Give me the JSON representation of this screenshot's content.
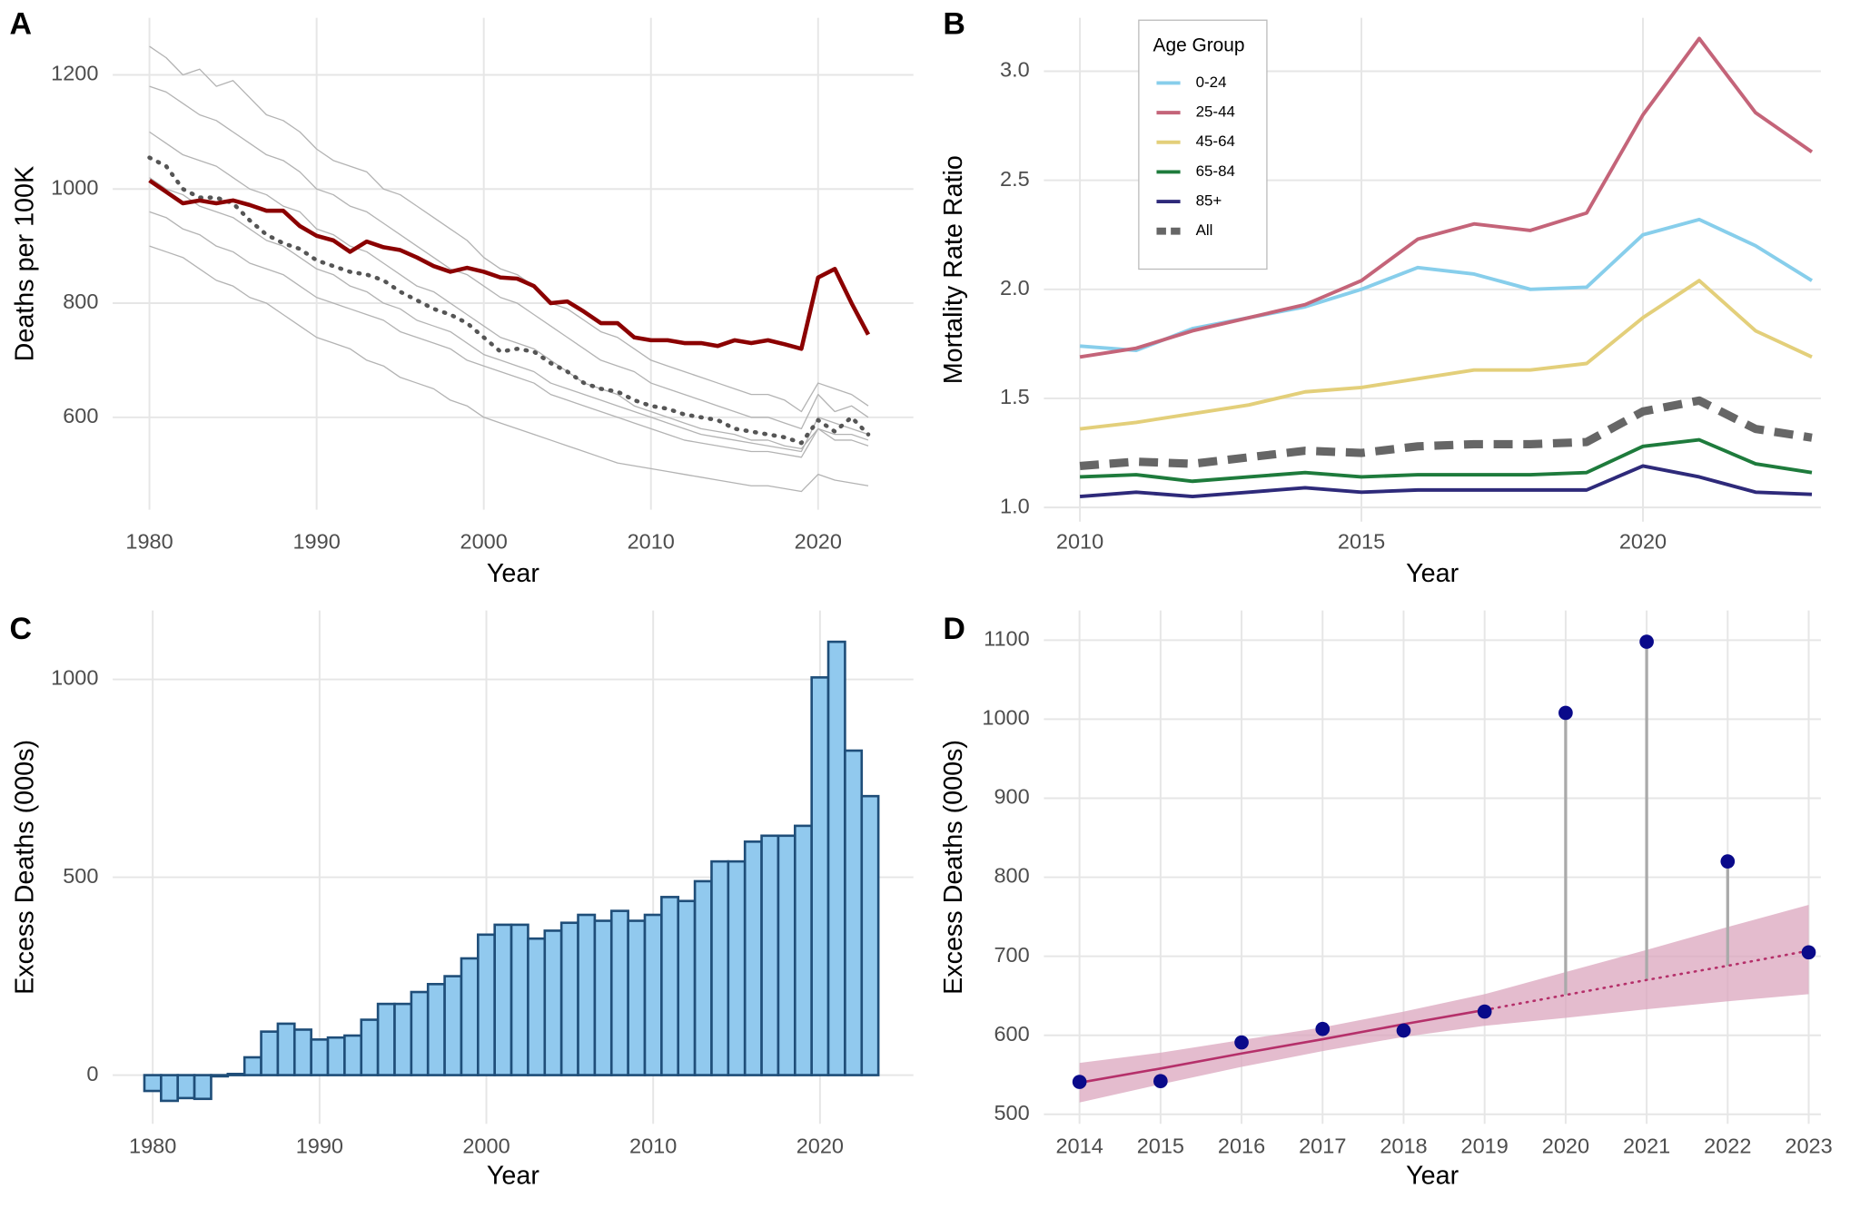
{
  "chart_data": [
    {
      "type": "line",
      "panel": "A",
      "xlabel": "Year",
      "ylabel": "Deaths per 100K",
      "x": [
        1980,
        1981,
        1982,
        1983,
        1984,
        1985,
        1986,
        1987,
        1988,
        1989,
        1990,
        1991,
        1992,
        1993,
        1994,
        1995,
        1996,
        1997,
        1998,
        1999,
        2000,
        2001,
        2002,
        2003,
        2004,
        2005,
        2006,
        2007,
        2008,
        2009,
        2010,
        2011,
        2012,
        2013,
        2014,
        2015,
        2016,
        2017,
        2018,
        2019,
        2020,
        2021,
        2022,
        2023
      ],
      "xlim": [
        1977.8,
        2025.7
      ],
      "xticks": [
        1980,
        1990,
        2000,
        2010,
        2020
      ],
      "ylim": [
        438,
        1300
      ],
      "yticks": [
        600,
        800,
        1000,
        1200
      ],
      "grid": true,
      "series": [
        {
          "color": "#b3b3b3",
          "style": "thin",
          "values": [
            1250,
            1230,
            1200,
            1210,
            1180,
            1190,
            1160,
            1130,
            1120,
            1100,
            1070,
            1050,
            1040,
            1030,
            1000,
            990,
            970,
            950,
            930,
            910,
            880,
            860,
            850,
            830,
            800,
            790,
            770,
            750,
            740,
            720,
            700,
            690,
            680,
            670,
            660,
            650,
            640,
            640,
            630,
            610,
            660,
            650,
            640,
            620
          ]
        },
        {
          "color": "#b3b3b3",
          "style": "thin",
          "values": [
            1180,
            1170,
            1150,
            1130,
            1120,
            1100,
            1080,
            1060,
            1050,
            1030,
            1000,
            990,
            970,
            960,
            940,
            920,
            900,
            880,
            860,
            850,
            830,
            810,
            800,
            780,
            760,
            740,
            720,
            700,
            690,
            680,
            660,
            650,
            640,
            630,
            620,
            610,
            600,
            600,
            590,
            580,
            640,
            610,
            620,
            600
          ]
        },
        {
          "color": "#b3b3b3",
          "style": "thin",
          "values": [
            1100,
            1080,
            1060,
            1050,
            1040,
            1020,
            1000,
            990,
            970,
            960,
            930,
            920,
            900,
            890,
            870,
            850,
            830,
            820,
            800,
            780,
            760,
            740,
            730,
            720,
            700,
            680,
            660,
            650,
            640,
            620,
            610,
            600,
            590,
            580,
            575,
            570,
            560,
            560,
            550,
            545,
            580,
            570,
            570,
            560
          ]
        },
        {
          "color": "#b3b3b3",
          "style": "thin",
          "values": [
            1020,
            1000,
            990,
            970,
            960,
            950,
            930,
            910,
            900,
            880,
            860,
            850,
            830,
            820,
            800,
            790,
            770,
            760,
            750,
            730,
            710,
            700,
            690,
            680,
            660,
            650,
            640,
            630,
            620,
            610,
            600,
            590,
            580,
            570,
            565,
            560,
            555,
            550,
            545,
            540,
            600,
            590,
            580,
            570
          ]
        },
        {
          "color": "#b3b3b3",
          "style": "thin",
          "values": [
            960,
            950,
            930,
            920,
            900,
            890,
            870,
            860,
            850,
            830,
            810,
            800,
            790,
            780,
            770,
            750,
            740,
            730,
            720,
            700,
            690,
            680,
            670,
            660,
            640,
            630,
            620,
            610,
            600,
            590,
            580,
            570,
            560,
            555,
            550,
            545,
            540,
            540,
            535,
            530,
            580,
            560,
            560,
            550
          ]
        },
        {
          "color": "#b3b3b3",
          "style": "thin",
          "values": [
            900,
            890,
            880,
            860,
            840,
            830,
            810,
            800,
            780,
            760,
            740,
            730,
            720,
            700,
            690,
            670,
            660,
            650,
            630,
            620,
            600,
            590,
            580,
            570,
            560,
            550,
            540,
            530,
            520,
            515,
            510,
            505,
            500,
            495,
            490,
            485,
            480,
            480,
            475,
            470,
            500,
            490,
            485,
            480
          ]
        },
        {
          "color": "#555555",
          "style": "dotted",
          "values": [
            1055,
            1040,
            1000,
            985,
            985,
            975,
            945,
            920,
            905,
            895,
            875,
            865,
            855,
            850,
            840,
            820,
            805,
            790,
            780,
            765,
            740,
            715,
            720,
            715,
            695,
            680,
            660,
            650,
            645,
            630,
            620,
            615,
            605,
            600,
            595,
            580,
            575,
            570,
            565,
            555,
            595,
            575,
            600,
            570
          ]
        },
        {
          "color": "#8b0000",
          "style": "bold",
          "values": [
            1015,
            995,
            975,
            980,
            975,
            980,
            972,
            962,
            962,
            935,
            918,
            910,
            890,
            908,
            898,
            893,
            880,
            865,
            855,
            862,
            855,
            845,
            843,
            830,
            800,
            803,
            785,
            765,
            765,
            740,
            735,
            735,
            730,
            730,
            725,
            735,
            730,
            735,
            728,
            720,
            845,
            860,
            800,
            745
          ]
        }
      ]
    },
    {
      "type": "line",
      "panel": "B",
      "xlabel": "Year",
      "ylabel": "Mortality Rate Ratio",
      "x": [
        2010,
        2011,
        2012,
        2013,
        2014,
        2015,
        2016,
        2017,
        2018,
        2019,
        2020,
        2021,
        2022,
        2023
      ],
      "xlim": [
        2009.36,
        2023.16
      ],
      "xticks": [
        2010,
        2015,
        2020
      ],
      "ylim": [
        0.935,
        3.245
      ],
      "yticks": [
        {
          "value": 1,
          "label": "1.0"
        },
        1.5,
        {
          "value": 2,
          "label": "2.0"
        },
        2.5,
        {
          "value": 3,
          "label": "3.0"
        }
      ],
      "grid": true,
      "legend_title": "Age Group",
      "legend": "top-left",
      "series": [
        {
          "name": "0-24",
          "color": "#87ceeb",
          "values": [
            1.74,
            1.72,
            1.82,
            1.87,
            1.92,
            2.0,
            2.1,
            2.07,
            2.0,
            2.01,
            2.25,
            2.32,
            2.2,
            2.04
          ]
        },
        {
          "name": "25-44",
          "color": "#c46479",
          "values": [
            1.69,
            1.73,
            1.81,
            1.87,
            1.93,
            2.04,
            2.23,
            2.3,
            2.27,
            2.35,
            2.8,
            3.15,
            2.81,
            2.63
          ]
        },
        {
          "name": "45-64",
          "color": "#e3cf7a",
          "values": [
            1.36,
            1.39,
            1.43,
            1.47,
            1.53,
            1.55,
            1.59,
            1.63,
            1.63,
            1.66,
            1.87,
            2.04,
            1.81,
            1.69
          ]
        },
        {
          "name": "65-84",
          "color": "#1e7b3c",
          "values": [
            1.14,
            1.15,
            1.12,
            1.14,
            1.16,
            1.14,
            1.15,
            1.15,
            1.15,
            1.16,
            1.28,
            1.31,
            1.2,
            1.16
          ]
        },
        {
          "name": "85+",
          "color": "#2e2a7a",
          "values": [
            1.05,
            1.07,
            1.05,
            1.07,
            1.09,
            1.07,
            1.08,
            1.08,
            1.08,
            1.08,
            1.19,
            1.14,
            1.07,
            1.06
          ]
        },
        {
          "name": "All",
          "color": "#666666",
          "style": "dashed",
          "values": [
            1.19,
            1.21,
            1.2,
            1.23,
            1.26,
            1.25,
            1.28,
            1.29,
            1.29,
            1.3,
            1.44,
            1.49,
            1.36,
            1.32
          ]
        }
      ]
    },
    {
      "type": "bar",
      "panel": "C",
      "xlabel": "Year",
      "ylabel": "Excess Deaths (000s)",
      "x": [
        1980,
        1981,
        1982,
        1983,
        1984,
        1985,
        1986,
        1987,
        1988,
        1989,
        1990,
        1991,
        1992,
        1993,
        1994,
        1995,
        1996,
        1997,
        1998,
        1999,
        2000,
        2001,
        2002,
        2003,
        2004,
        2005,
        2006,
        2007,
        2008,
        2009,
        2010,
        2011,
        2012,
        2013,
        2014,
        2015,
        2016,
        2017,
        2018,
        2019,
        2020,
        2021,
        2022,
        2023
      ],
      "xlim": [
        1977.6,
        2025.6
      ],
      "xticks": [
        1980,
        1990,
        2000,
        2010,
        2020
      ],
      "ylim": [
        -123,
        1174
      ],
      "yticks": [
        0,
        500,
        1000
      ],
      "grid": true,
      "color": "#91c9ee",
      "edgecolor": "#1f4e79",
      "values": [
        -40,
        -65,
        -58,
        -60,
        -3,
        3,
        45,
        110,
        130,
        115,
        90,
        95,
        100,
        140,
        180,
        180,
        210,
        230,
        250,
        295,
        355,
        380,
        380,
        345,
        365,
        385,
        405,
        390,
        415,
        390,
        405,
        450,
        440,
        490,
        540,
        540,
        590,
        605,
        605,
        630,
        1005,
        1095,
        820,
        705
      ]
    },
    {
      "type": "trend",
      "panel": "D",
      "xlabel": "Year",
      "ylabel": "Excess Deaths (000s)",
      "x": [
        2014,
        2015,
        2016,
        2017,
        2018,
        2019,
        2020,
        2021,
        2022,
        2023
      ],
      "xlim": [
        2013.56,
        2023.15
      ],
      "xticks": [
        2014,
        2015,
        2016,
        2017,
        2018,
        2019,
        2020,
        2021,
        2022,
        2023
      ],
      "ylim": [
        488,
        1137.5
      ],
      "yticks": [
        500,
        600,
        700,
        800,
        900,
        1000,
        1100
      ],
      "grid": true,
      "band": {
        "color": "#dba5bd",
        "lower": [
          515,
          538,
          560,
          580,
          598,
          612,
          622,
          633,
          643,
          652
        ],
        "upper": [
          565,
          578,
          594,
          610,
          630,
          652,
          680,
          708,
          737,
          765
        ]
      },
      "fitted": {
        "color": "#b5306a",
        "values": [
          540,
          558,
          577,
          595,
          614,
          632,
          null,
          null,
          null,
          null
        ]
      },
      "projected": {
        "color": "#b5306a",
        "style": "dotted",
        "values": [
          null,
          null,
          null,
          null,
          null,
          632,
          651,
          670,
          688,
          707
        ]
      },
      "drop_color": "#aaaaaa",
      "observed": {
        "color": "#0a0a8a",
        "values": [
          541,
          542,
          591,
          608,
          606,
          630,
          1008,
          1098,
          820,
          705
        ]
      }
    }
  ]
}
